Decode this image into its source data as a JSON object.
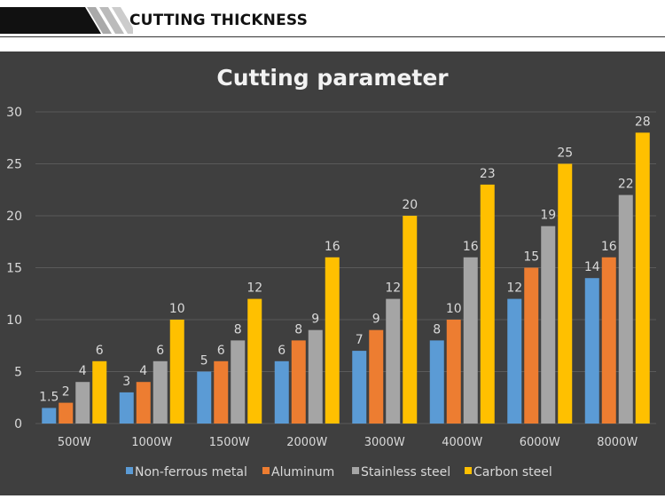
{
  "header": {
    "title": "CUTTING THICKNESS"
  },
  "colors": {
    "background": "#3f3f3f",
    "grid": "#5a5a5a",
    "text": "#d9d9d9",
    "title": "#f2f2f2"
  },
  "chart_data": {
    "type": "bar",
    "title": "Cutting parameter",
    "xlabel": "",
    "ylabel": "",
    "ylim": [
      0,
      30
    ],
    "yticks": [
      0,
      5,
      10,
      15,
      20,
      25,
      30
    ],
    "grid": true,
    "legend_position": "bottom",
    "categories": [
      "500W",
      "1000W",
      "1500W",
      "2000W",
      "3000W",
      "4000W",
      "6000W",
      "8000W"
    ],
    "series": [
      {
        "name": "Non-ferrous metal",
        "color": "#5b9bd5",
        "values": [
          1.5,
          3,
          5,
          6,
          7,
          8,
          12,
          14
        ]
      },
      {
        "name": "Aluminum",
        "color": "#ed7d31",
        "values": [
          2,
          4,
          6,
          8,
          9,
          10,
          15,
          16
        ]
      },
      {
        "name": "Stainless steel",
        "color": "#a5a5a5",
        "values": [
          4,
          6,
          8,
          9,
          12,
          16,
          19,
          22
        ]
      },
      {
        "name": "Carbon steel",
        "color": "#ffc000",
        "values": [
          6,
          10,
          12,
          16,
          20,
          23,
          25,
          28
        ]
      }
    ]
  }
}
